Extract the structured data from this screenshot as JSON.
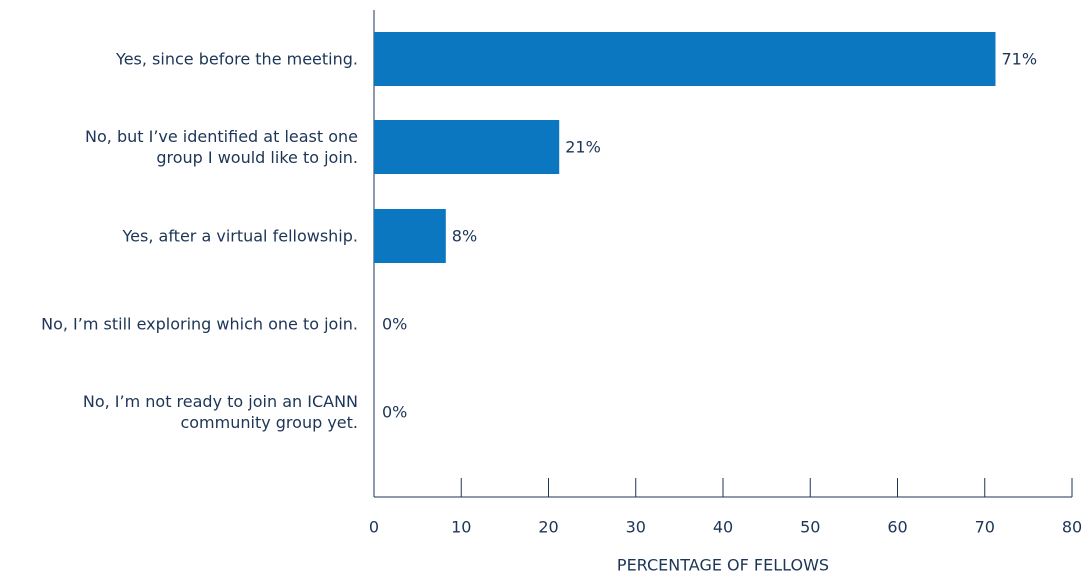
{
  "chart_data": {
    "type": "bar",
    "orientation": "horizontal",
    "categories": [
      "Yes, since before the meeting.",
      "No, but I’ve identified at least one\ngroup I would like to join.",
      "Yes, after a virtual fellowship.",
      "No, I’m still exploring which one to join.",
      "No, I’m not ready to join an ICANN\ncommunity group yet."
    ],
    "values": [
      71,
      21,
      8,
      0,
      0
    ],
    "value_labels": [
      "71%",
      "21%",
      "8%",
      "0%",
      "0%"
    ],
    "color": "#0a77c0",
    "xlim": [
      0,
      80
    ],
    "xticks": [
      0,
      10,
      20,
      30,
      40,
      50,
      60,
      70,
      80
    ],
    "xlabel": "PERCENTAGE OF FELLOWS"
  }
}
